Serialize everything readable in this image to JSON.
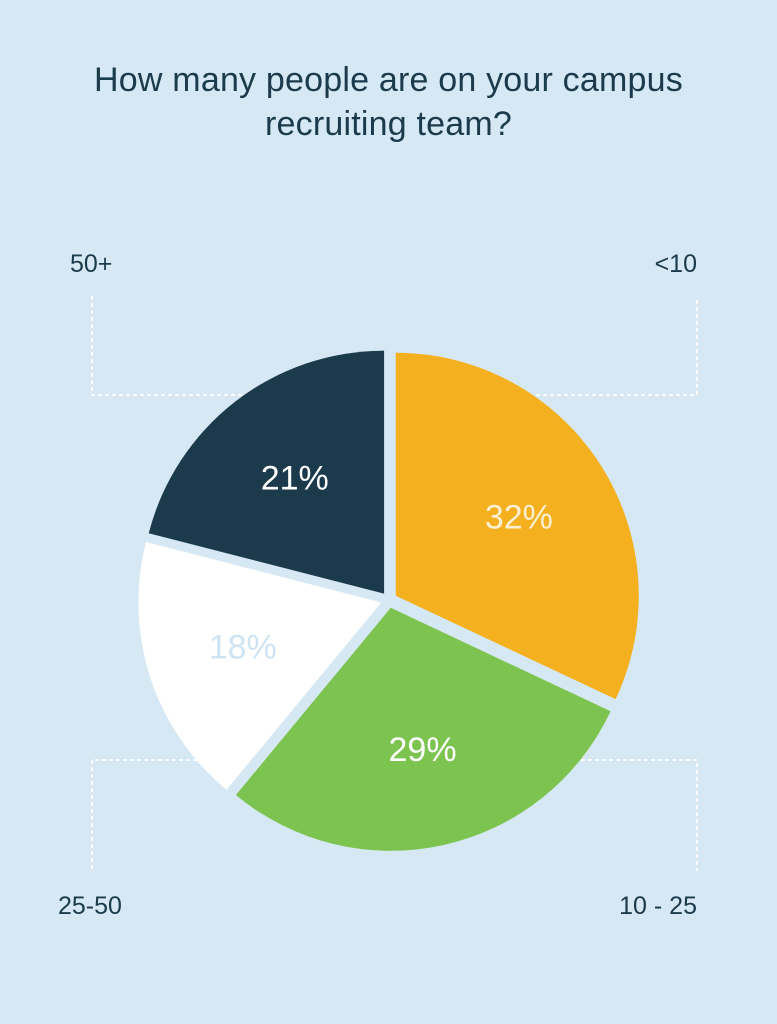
{
  "chart_data": {
    "type": "pie",
    "title_lines": [
      "How many people are on your campus",
      "recruiting team?"
    ],
    "slices": [
      {
        "label": "<10",
        "value": 32,
        "display": "32%",
        "color": "#f4b01e",
        "text_color": "#fdf0d2"
      },
      {
        "label": "10 - 25",
        "value": 29,
        "display": "29%",
        "color": "#7dc34f",
        "text_color": "#ffffff"
      },
      {
        "label": "25-50",
        "value": 18,
        "display": "18%",
        "color": "#ffffff",
        "text_color": "#cfe4f2"
      },
      {
        "label": "50+",
        "value": 21,
        "display": "21%",
        "color": "#1b3a4b",
        "text_color": "#ffffff"
      }
    ],
    "start": "top, clockwise",
    "background": "#d6e8f3",
    "leader_line_color": "#ffffff"
  }
}
